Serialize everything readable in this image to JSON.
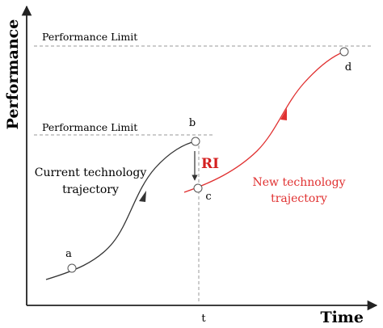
{
  "axes": {
    "y_title": "Performance",
    "x_title": "Time"
  },
  "limits": {
    "upper": "Performance Limit",
    "lower": "Performance Limit"
  },
  "points": {
    "a": "a",
    "b": "b",
    "c": "c",
    "d": "d"
  },
  "time_marker": "t",
  "current": {
    "line1": "Current technology",
    "line2": "trajectory"
  },
  "new": {
    "line1": "New technology",
    "line2": "trajectory"
  },
  "ri_label": "RI",
  "colors": {
    "current_curve": "#333333",
    "new_curve": "#e03030",
    "ri": "#d42020",
    "new_label": "#e03030",
    "dashed": "#999999",
    "axis": "#222222"
  }
}
